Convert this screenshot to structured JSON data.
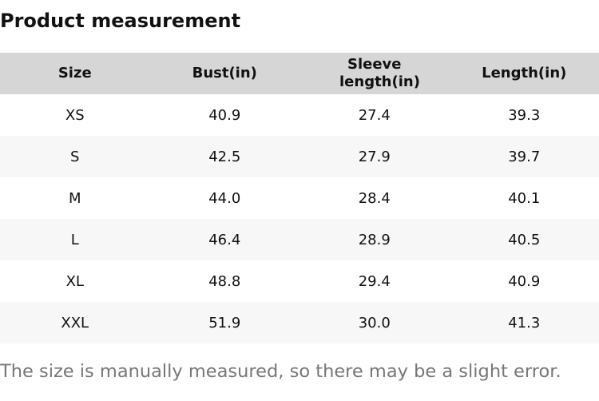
{
  "title": "Product measurement",
  "headers": [
    "Size",
    "Bust(in)",
    "Sleeve length(in)",
    "Length(in)"
  ],
  "rows": [
    [
      "XS",
      "40.9",
      "27.4",
      "39.3"
    ],
    [
      "S",
      "42.5",
      "27.9",
      "39.7"
    ],
    [
      "M",
      "44.0",
      "28.4",
      "40.1"
    ],
    [
      "L",
      "46.4",
      "28.9",
      "40.5"
    ],
    [
      "XL",
      "48.8",
      "29.4",
      "40.9"
    ],
    [
      "XXL",
      "51.9",
      "30.0",
      "41.3"
    ]
  ],
  "note": "The size is manually measured, so there may be a slight error."
}
